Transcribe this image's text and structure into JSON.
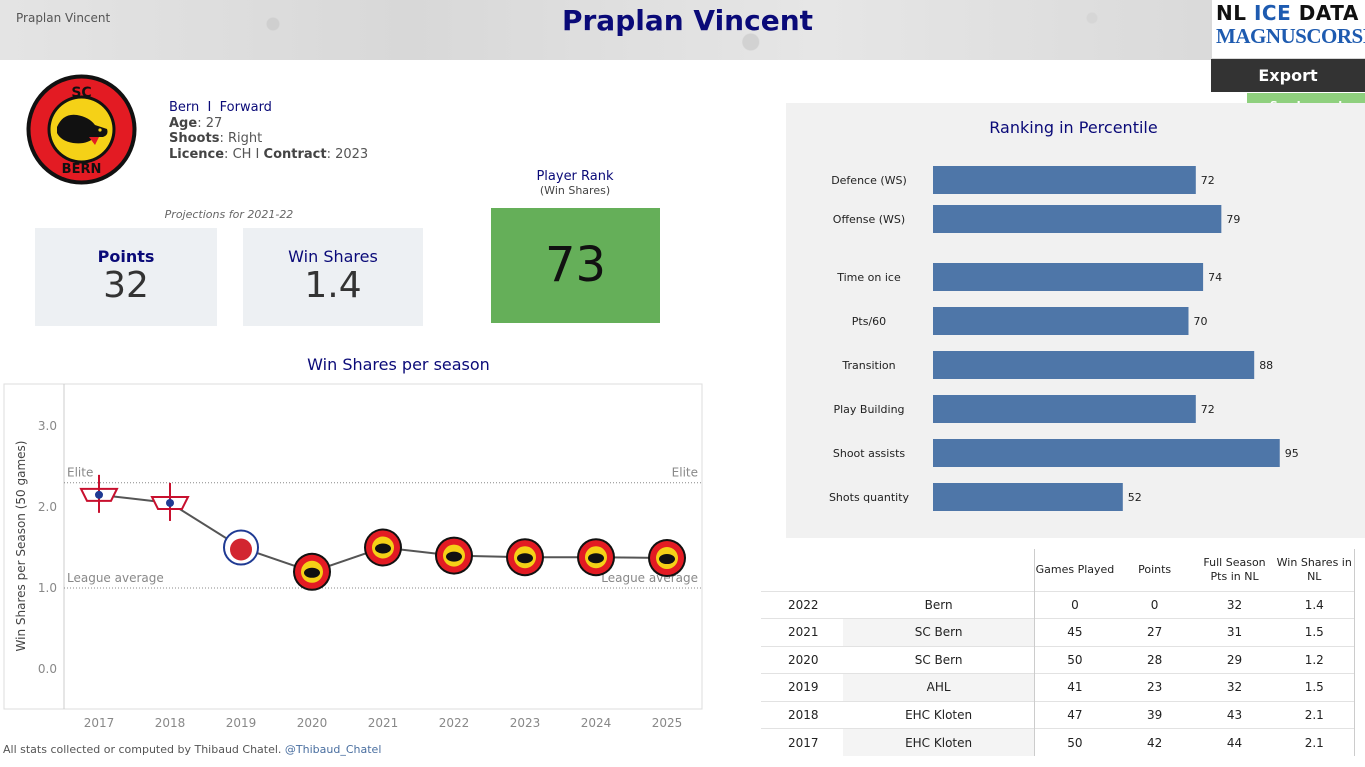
{
  "header": {
    "small_title": "Praplan Vincent",
    "title": "Praplan Vincent",
    "logo_line1_a": "NL ",
    "logo_line1_b": "ICE",
    "logo_line1_c": " DATA",
    "logo_line2": "MAGNUSCORSI",
    "export_label": "Export",
    "legend_label": "See Legend"
  },
  "player": {
    "team": "Bern",
    "separator": "I",
    "position": "Forward",
    "age_label": "Age",
    "age": "27",
    "shoots_label": "Shoots",
    "shoots": "Right",
    "licence_label": "Licence",
    "licence": "CH I",
    "contract_label": "Contract",
    "contract": "2023",
    "logo_text": "SC BERN"
  },
  "projections": {
    "label": "Projections for 2021-22",
    "points_label": "Points",
    "points": "32",
    "ws_label": "Win Shares",
    "ws": "1.4"
  },
  "player_rank": {
    "label": "Player Rank",
    "sublabel": "(Win Shares)",
    "value": "73",
    "color": "#65af59"
  },
  "colors": {
    "title": "#0a0a78",
    "bar": "#4e76a8",
    "rank_green": "#65af59"
  },
  "ws_chart": {
    "title": "Win Shares per season",
    "ylabel": "Win Shares per Season (50 games)",
    "elite_label": "Elite",
    "league_label": "League average",
    "footer_text": "All stats collected or computed by Thibaud Chatel.",
    "footer_handle": "@Thibaud_Chatel"
  },
  "chart_data": [
    {
      "type": "line",
      "title": "Win Shares per season",
      "ylabel": "Win Shares per Season (50 games)",
      "x": [
        "2017",
        "2018",
        "2019",
        "2020",
        "2021",
        "2022",
        "2023",
        "2024",
        "2025"
      ],
      "values": [
        2.15,
        2.05,
        1.5,
        1.2,
        1.5,
        1.4,
        1.38,
        1.38,
        1.37
      ],
      "markers": [
        "kloten",
        "kloten",
        "ahl",
        "bern",
        "bern",
        "bern",
        "bern",
        "bern",
        "bern"
      ],
      "yticks": [
        "0.0",
        "1.0",
        "2.0",
        "3.0"
      ],
      "ylim": [
        -0.5,
        3.5
      ],
      "reference_lines": [
        {
          "name": "Elite",
          "value": 2.3
        },
        {
          "name": "League average",
          "value": 1.0
        }
      ],
      "grid": false
    },
    {
      "type": "bar",
      "orientation": "horizontal",
      "title": "Ranking in Percentile",
      "categories": [
        "Defence (WS)",
        "Offense (WS)",
        "Time on ice",
        "Pts/60",
        "Transition",
        "Play Building",
        "Shoot assists",
        "Shots quantity"
      ],
      "values": [
        72,
        79,
        74,
        70,
        88,
        72,
        95,
        52
      ],
      "xlim": [
        0,
        100
      ],
      "grid": false
    }
  ],
  "stats_table": {
    "headers": [
      "",
      "",
      "Games Played",
      "Points",
      "Full Season Pts in NL",
      "Win Shares in NL"
    ],
    "rows": [
      [
        "2022",
        "Bern",
        "0",
        "0",
        "32",
        "1.4"
      ],
      [
        "2021",
        "SC Bern",
        "45",
        "27",
        "31",
        "1.5"
      ],
      [
        "2020",
        "SC Bern",
        "50",
        "28",
        "29",
        "1.2"
      ],
      [
        "2019",
        "AHL",
        "41",
        "23",
        "32",
        "1.5"
      ],
      [
        "2018",
        "EHC Kloten",
        "47",
        "39",
        "43",
        "2.1"
      ],
      [
        "2017",
        "EHC Kloten",
        "50",
        "42",
        "44",
        "2.1"
      ]
    ]
  }
}
